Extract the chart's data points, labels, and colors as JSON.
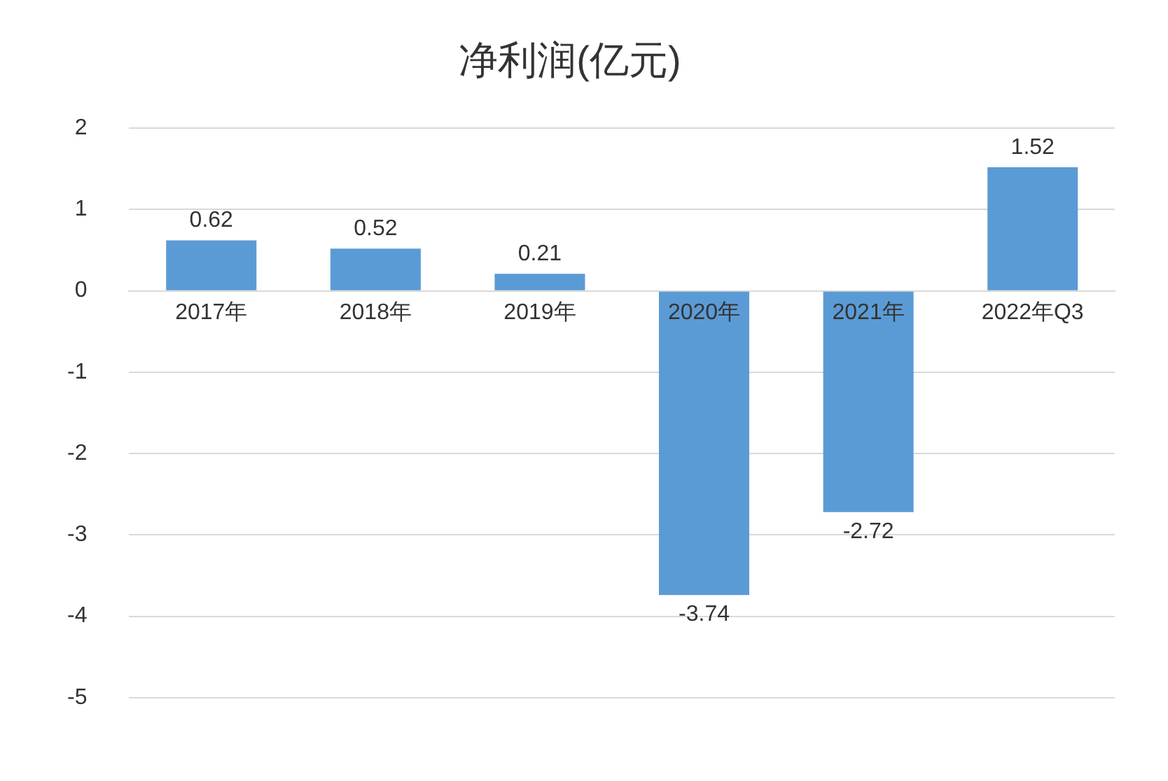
{
  "chart_data": {
    "type": "bar",
    "title": "净利润(亿元)",
    "categories": [
      "2017年",
      "2018年",
      "2019年",
      "2020年",
      "2021年",
      "2022年Q3"
    ],
    "values": [
      0.62,
      0.52,
      0.21,
      -3.74,
      -2.72,
      1.52
    ],
    "color": "#5b9bd5",
    "ylim": [
      -5,
      2
    ],
    "yticks": [
      -5,
      -4,
      -3,
      -2,
      -1,
      0,
      1,
      2
    ],
    "grid": "y",
    "data_labels": true
  }
}
